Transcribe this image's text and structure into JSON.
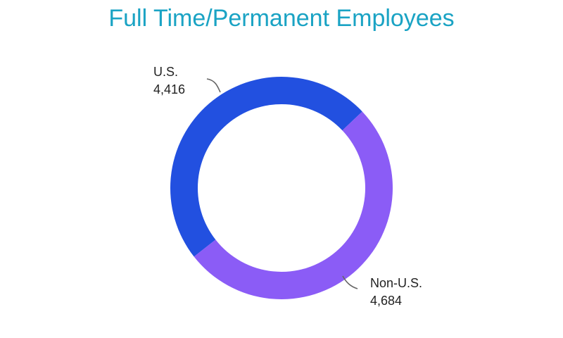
{
  "chart_data": {
    "type": "pie",
    "donut": true,
    "title": "Full Time/Permanent Employees",
    "slices": [
      {
        "label": "U.S.",
        "value": 4416,
        "value_label": "4,416",
        "color": "#2250e0"
      },
      {
        "label": "Non-U.S.",
        "value": 4684,
        "value_label": "4,684",
        "color": "#8b5cf6"
      }
    ],
    "legend": "none"
  },
  "colors": {
    "title": "#1aa3c4",
    "leader_line": "#666666",
    "label_text": "#222222"
  }
}
